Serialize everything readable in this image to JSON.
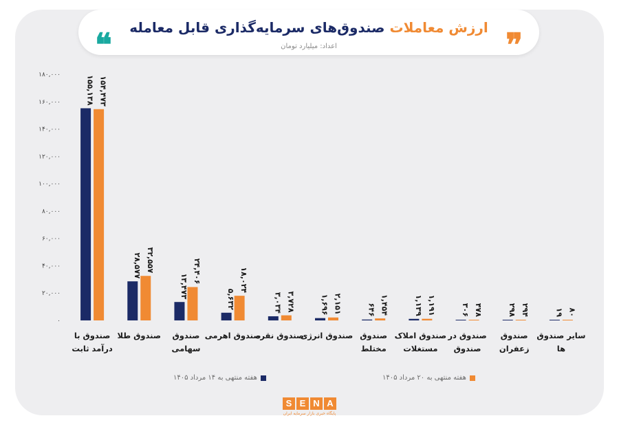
{
  "header": {
    "title_orange": "ارزش معاملات",
    "title_blue": "صندوق‌های سرمایه‌گذاری قابل معامله",
    "subtitle": "اعداد: میلیارد تومان",
    "quote_open": "❞",
    "quote_close": "❝"
  },
  "colors": {
    "navy": "#1b2a66",
    "orange": "#f08a33",
    "axis": "#444444"
  },
  "chart_data": {
    "type": "bar",
    "categories": [
      [
        "صندوق با",
        "درآمد ثابت"
      ],
      [
        "صندوق طلا"
      ],
      [
        "صندوق",
        "سهامی"
      ],
      [
        "صندوق اهرمی"
      ],
      [
        "صندوق نقره"
      ],
      [
        "صندوق انرژی"
      ],
      [
        "صندوق",
        "مختلط"
      ],
      [
        "صندوق املاک",
        "مستغلات"
      ],
      [
        "صندوق در",
        "صندوق"
      ],
      [
        "صندوق",
        "زعفران"
      ],
      [
        "سایر صندوق",
        "ها"
      ]
    ],
    "series": [
      {
        "name": "هفته منتهی به ۱۴ مرداد ۱۴۰۵",
        "color": "#1b2a66",
        "values": [
          155138,
          28577,
          13473,
          5632,
          3034,
          1696,
          646,
          1139,
          306,
          298,
          19
        ],
        "labels": [
          "۱۵۵,۱۳۸",
          "۲۸,۵۷۷",
          "۱۳,۴۷۳",
          "۵,۶۳۲",
          "۳,۰۳۴",
          "۱,۶۹۶",
          "۶۴۶",
          "۱,۱۳۹",
          "۳۰۶",
          "۲۹۸",
          "۱۹"
        ]
      },
      {
        "name": "هفته منتهی به ۲۰ مرداد ۱۴۰۵",
        "color": "#f08a33",
        "values": [
          154473,
          32557,
          24406,
          18024,
          3728,
          2151,
          1454,
          1191,
          478,
          294,
          80
        ],
        "labels": [
          "۱۵۴,۴۷۳",
          "۳۲,۵۵۷",
          "۲۴,۴۰۶",
          "۱۸,۰۲۴",
          "۳,۷۲۸",
          "۲,۱۵۱",
          "۱,۴۵۴",
          "۱,۱۹۱",
          "۴۷۸",
          "۲۹۴",
          "۸۰"
        ]
      }
    ],
    "ylim": [
      0,
      180000
    ],
    "yticks": [
      0,
      20000,
      40000,
      60000,
      80000,
      100000,
      120000,
      140000,
      160000,
      180000
    ],
    "ytick_labels": [
      "۰",
      "۲۰,۰۰۰",
      "۴۰,۰۰۰",
      "۶۰,۰۰۰",
      "۸۰,۰۰۰",
      "۱۰۰,۰۰۰",
      "۱۲۰,۰۰۰",
      "۱۴۰,۰۰۰",
      "۱۶۰,۰۰۰",
      "۱۸۰,۰۰۰"
    ],
    "grid": false,
    "legend_position": "bottom"
  },
  "logo": {
    "letters": [
      "S",
      "E",
      "N",
      "A"
    ],
    "tagline": "پایگاه خبری بازار سرمایه ایران"
  }
}
